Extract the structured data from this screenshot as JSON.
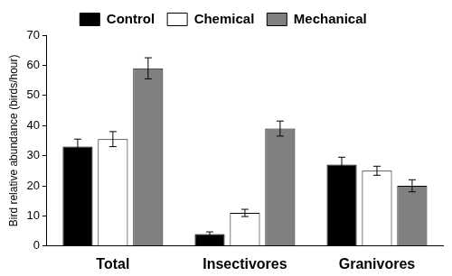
{
  "chart_data": {
    "type": "bar",
    "y_label": "Bird relative abundance (birds/hour)",
    "categories": [
      "Total",
      "Insectivores",
      "Granivores"
    ],
    "series": [
      {
        "name": "Control",
        "color": "#000000",
        "values": [
          33,
          4,
          27
        ],
        "errors": [
          2.5,
          0.7,
          2.5
        ]
      },
      {
        "name": "Chemical",
        "color": "#ffffff",
        "values": [
          35.5,
          11,
          25
        ],
        "errors": [
          2.5,
          1.2,
          1.5
        ]
      },
      {
        "name": "Mechanical",
        "color": "#808080",
        "values": [
          59,
          39,
          20
        ],
        "errors": [
          3.5,
          2.5,
          2
        ]
      }
    ],
    "ylim": [
      0,
      70
    ],
    "yticks": [
      0,
      10,
      20,
      30,
      40,
      50,
      60,
      70
    ],
    "grid": false,
    "legend": "top"
  }
}
